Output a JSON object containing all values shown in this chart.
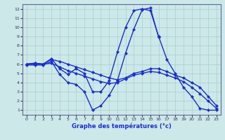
{
  "xlabel": "Graphe des températures (°c)",
  "xlim_lo": -0.5,
  "xlim_hi": 23.5,
  "ylim_lo": 0.5,
  "ylim_hi": 12.5,
  "bg_color": "#cce8e8",
  "grid_color": "#aacece",
  "line_color": "#1a2ecc",
  "xticks": [
    0,
    1,
    2,
    3,
    4,
    5,
    6,
    7,
    8,
    9,
    10,
    11,
    12,
    13,
    14,
    15,
    16,
    17,
    18,
    19,
    20,
    21,
    22,
    23
  ],
  "yticks": [
    1,
    2,
    3,
    4,
    5,
    6,
    7,
    8,
    9,
    10,
    11,
    12
  ],
  "lines": [
    {
      "x": [
        0,
        1,
        2,
        3,
        4,
        5,
        6,
        7,
        8,
        9,
        10,
        11,
        12,
        13,
        14,
        15,
        16,
        17,
        18,
        19,
        20,
        21,
        22,
        23
      ],
      "y": [
        6.0,
        6.1,
        6.0,
        6.5,
        6.3,
        6.0,
        5.7,
        5.4,
        5.1,
        4.8,
        4.5,
        4.3,
        4.5,
        5.0,
        5.2,
        5.5,
        5.5,
        5.2,
        4.8,
        4.5,
        4.0,
        3.5,
        2.5,
        1.5
      ]
    },
    {
      "x": [
        0,
        1,
        2,
        3,
        4,
        5,
        6,
        7,
        8,
        9,
        10,
        11,
        12,
        13,
        14,
        15,
        16,
        17,
        18,
        19,
        20,
        21,
        22,
        23
      ],
      "y": [
        6.0,
        6.0,
        6.0,
        6.1,
        5.7,
        5.3,
        5.0,
        4.7,
        4.4,
        4.1,
        3.9,
        4.0,
        4.4,
        4.8,
        5.0,
        5.2,
        5.1,
        4.8,
        4.5,
        4.1,
        3.5,
        2.8,
        2.0,
        1.2
      ]
    },
    {
      "x": [
        0,
        1,
        2,
        3,
        4,
        5,
        6,
        7,
        8,
        9,
        10,
        11,
        12,
        13,
        14,
        15,
        16,
        17,
        18,
        19,
        20,
        21,
        22,
        23
      ],
      "y": [
        6.0,
        6.1,
        6.0,
        6.6,
        5.5,
        4.9,
        5.5,
        5.0,
        3.0,
        3.0,
        4.2,
        7.3,
        10.0,
        11.8,
        12.0,
        11.8,
        9.0,
        6.5,
        5.0,
        3.5,
        2.5,
        1.2,
        1.0,
        1.0
      ]
    },
    {
      "x": [
        0,
        1,
        2,
        3,
        4,
        5,
        6,
        7,
        8,
        9,
        10,
        11,
        12,
        13,
        14,
        15,
        16
      ],
      "y": [
        5.9,
        5.9,
        5.9,
        6.3,
        4.9,
        4.0,
        3.8,
        3.0,
        1.0,
        1.5,
        2.6,
        4.2,
        7.2,
        9.8,
        11.9,
        12.1,
        8.9
      ]
    }
  ],
  "marker": "D",
  "markersize": 2.2,
  "linewidth": 1.0
}
